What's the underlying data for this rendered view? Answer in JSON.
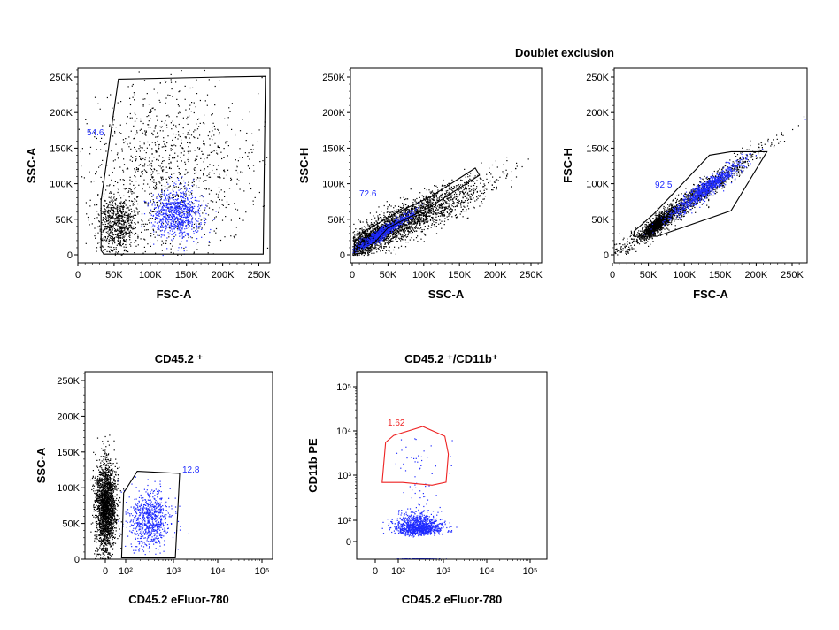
{
  "colors": {
    "gated": "#1f2bff",
    "ungated": "#000000",
    "gate_black": "#000000",
    "gate_red": "#ee2222"
  },
  "section_titles": {
    "doublet": "Doublet exclusion"
  },
  "chart_data": [
    {
      "type": "scatter",
      "title": "",
      "xlabel": "FSC-A",
      "ylabel": "SSC-A",
      "xscale": "linear",
      "yscale": "linear",
      "xlim": [
        0,
        262
      ],
      "ylim": [
        0,
        262
      ],
      "unit": "K",
      "xticks": [
        "0",
        "50K",
        "100K",
        "150K",
        "200K",
        "250K"
      ],
      "yticks": [
        "0",
        "50K",
        "100K",
        "150K",
        "200K",
        "250K"
      ],
      "gate": {
        "label": "54.6",
        "color": "#000000",
        "label_color": "#1f2bff",
        "polygon": [
          [
            56,
            247
          ],
          [
            200,
            250
          ],
          [
            259,
            251
          ],
          [
            256,
            1
          ],
          [
            36,
            1
          ],
          [
            32,
            6
          ],
          [
            32,
            76
          ]
        ]
      },
      "populations": [
        {
          "kind": "normal",
          "color": "#000000",
          "n": 1100,
          "mx": 120,
          "sx": 60,
          "my": 120,
          "sy": 65
        },
        {
          "kind": "normal",
          "color": "#000000",
          "n": 700,
          "mx": 55,
          "sx": 14,
          "my": 45,
          "sy": 20
        },
        {
          "kind": "normal",
          "color": "#1f2bff",
          "n": 800,
          "mx": 135,
          "sx": 17,
          "my": 58,
          "sy": 17
        }
      ]
    },
    {
      "type": "scatter",
      "title": "",
      "xlabel": "SSC-A",
      "ylabel": "SSC-H",
      "xscale": "linear",
      "yscale": "linear",
      "xlim": [
        0,
        262
      ],
      "ylim": [
        0,
        262
      ],
      "unit": "K",
      "xticks": [
        "0",
        "50K",
        "100K",
        "150K",
        "200K",
        "250K"
      ],
      "yticks": [
        "0",
        "50K",
        "100K",
        "150K",
        "200K",
        "250K"
      ],
      "gate": {
        "label": "72.6",
        "color": "#000000",
        "label_color": "#1f2bff",
        "polygon": [
          [
            3,
            1
          ],
          [
            3,
            18
          ],
          [
            20,
            35
          ],
          [
            60,
            58
          ],
          [
            110,
            82
          ],
          [
            172,
            122
          ],
          [
            178,
            112
          ],
          [
            110,
            68
          ],
          [
            50,
            38
          ],
          [
            18,
            3
          ]
        ]
      },
      "populations": [
        {
          "kind": "linear",
          "color": "#000000",
          "n": 2200,
          "mx": 75,
          "sx": 55,
          "slope": 0.48,
          "icpt": 12,
          "sy": 13
        },
        {
          "kind": "linear",
          "color": "#000000",
          "n": 900,
          "mx": 30,
          "sx": 14,
          "slope": 0.6,
          "icpt": 8,
          "sy": 5
        },
        {
          "kind": "linear",
          "color": "#1f2bff",
          "n": 700,
          "mx": 45,
          "sx": 20,
          "slope": 0.62,
          "icpt": 6,
          "sy": 4
        }
      ]
    },
    {
      "type": "scatter",
      "title": "",
      "xlabel": "FSC-A",
      "ylabel": "FSC-H",
      "xscale": "linear",
      "yscale": "linear",
      "xlim": [
        0,
        262
      ],
      "ylim": [
        0,
        262
      ],
      "unit": "K",
      "xticks": [
        "0",
        "50K",
        "100K",
        "150K",
        "200K",
        "250K"
      ],
      "yticks": [
        "0",
        "50K",
        "100K",
        "150K",
        "200K",
        "250K"
      ],
      "gate": {
        "label": "92.5",
        "color": "#000000",
        "label_color": "#1f2bff",
        "polygon": [
          [
            30,
            26
          ],
          [
            30,
            33
          ],
          [
            58,
            58
          ],
          [
            135,
            140
          ],
          [
            165,
            145
          ],
          [
            215,
            145
          ],
          [
            165,
            62
          ],
          [
            62,
            26
          ]
        ]
      },
      "populations": [
        {
          "kind": "linear",
          "color": "#000000",
          "n": 1300,
          "mx": 105,
          "sx": 50,
          "slope": 0.72,
          "icpt": 0,
          "sy": 8
        },
        {
          "kind": "linear",
          "color": "#000000",
          "n": 900,
          "mx": 60,
          "sx": 10,
          "slope": 0.75,
          "icpt": -3,
          "sy": 5
        },
        {
          "kind": "linear",
          "color": "#1f2bff",
          "n": 900,
          "mx": 130,
          "sx": 25,
          "slope": 0.72,
          "icpt": 0,
          "sy": 6
        }
      ]
    },
    {
      "type": "scatter",
      "title": "CD45.2 ⁺",
      "xlabel": "CD45.2 eFluor-780",
      "ylabel": "SSC-A",
      "xscale": "biexponential",
      "yscale": "linear",
      "ylim": [
        0,
        262
      ],
      "unit": "K",
      "xticks": [
        "0",
        "10²",
        "10³",
        "10⁴",
        "10⁵"
      ],
      "yticks": [
        "0",
        "50K",
        "100K",
        "150K",
        "200K",
        "250K"
      ],
      "gate": {
        "label": "12.8",
        "color": "#000000",
        "label_color": "#1f2bff",
        "polygon": [
          [
            90,
            93
          ],
          [
            175,
            123
          ],
          [
            1380,
            120
          ],
          [
            1100,
            2
          ],
          [
            80,
            2
          ]
        ]
      },
      "populations": [
        {
          "kind": "xnorm",
          "color": "#000000",
          "n": 2000,
          "mx": 0,
          "sx": 25,
          "my": 75,
          "sy": 32
        },
        {
          "kind": "xlog",
          "color": "#1f2bff",
          "n": 750,
          "mlx": 2.5,
          "slx": 0.22,
          "my": 55,
          "sy": 20
        }
      ]
    },
    {
      "type": "scatter",
      "title": "CD45.2 ⁺/CD11b⁺",
      "xlabel": "CD45.2 eFluor-780",
      "ylabel": "CD11b PE",
      "xscale": "biexponential",
      "yscale": "biexponential",
      "xticks": [
        "0",
        "10²",
        "10³",
        "10⁴",
        "10⁵"
      ],
      "yticks": [
        "0",
        "10²",
        "10³",
        "10⁴",
        "10⁵"
      ],
      "gate": {
        "label": "1.62",
        "color": "#ee2222",
        "label_color": "#ee2222",
        "polygon": [
          [
            30,
            690
          ],
          [
            45,
            5500
          ],
          [
            80,
            7900
          ],
          [
            350,
            12600
          ],
          [
            1080,
            7600
          ],
          [
            1300,
            3000
          ],
          [
            1150,
            700
          ],
          [
            560,
            600
          ],
          [
            125,
            690
          ]
        ]
      },
      "populations": [
        {
          "kind": "loglog",
          "color": "#1f2bff",
          "n": 1100,
          "mlx": 2.45,
          "slx": 0.25,
          "mly": 1.85,
          "sly": 0.15
        },
        {
          "kind": "loglog",
          "color": "#1f2bff",
          "n": 30,
          "mlx": 2.45,
          "slx": 0.3,
          "mly": 3.4,
          "sly": 0.2
        },
        {
          "kind": "loglog",
          "color": "#1f2bff",
          "n": 25,
          "mlx": 2.5,
          "slx": 0.25,
          "mly": 2.6,
          "sly": 0.3
        },
        {
          "kind": "xlogbottom",
          "color": "#1f2bff",
          "n": 120,
          "mlx": 2.45,
          "slx": 0.25,
          "y": -80
        }
      ]
    }
  ]
}
